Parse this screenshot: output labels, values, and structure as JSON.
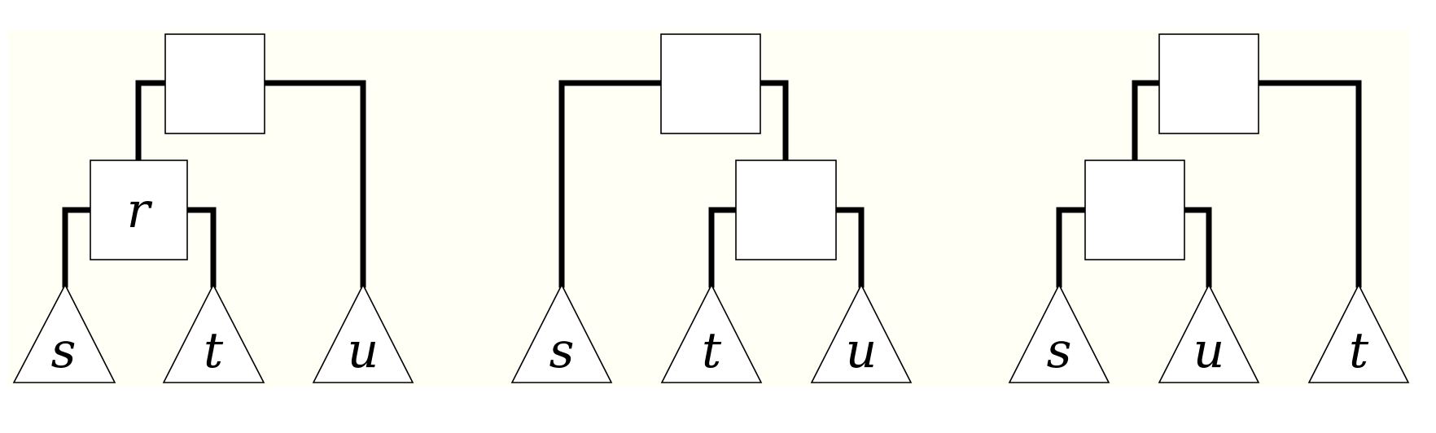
{
  "colors": {
    "background": "#fffff5",
    "stroke": "#000000",
    "node_fill": "#ffffff"
  },
  "trees": [
    {
      "internal_nodes": [
        {
          "id": "root",
          "label": ""
        },
        {
          "id": "inner",
          "label": "r"
        }
      ],
      "leaves": [
        {
          "id": "leaf-1",
          "label": "s"
        },
        {
          "id": "leaf-2",
          "label": "t"
        },
        {
          "id": "leaf-3",
          "label": "u"
        }
      ]
    },
    {
      "internal_nodes": [
        {
          "id": "root",
          "label": ""
        },
        {
          "id": "inner",
          "label": ""
        }
      ],
      "leaves": [
        {
          "id": "leaf-1",
          "label": "s"
        },
        {
          "id": "leaf-2",
          "label": "t"
        },
        {
          "id": "leaf-3",
          "label": "u"
        }
      ]
    },
    {
      "internal_nodes": [
        {
          "id": "root",
          "label": ""
        },
        {
          "id": "inner",
          "label": ""
        }
      ],
      "leaves": [
        {
          "id": "leaf-1",
          "label": "s"
        },
        {
          "id": "leaf-2",
          "label": "u"
        },
        {
          "id": "leaf-3",
          "label": "t"
        }
      ]
    }
  ]
}
